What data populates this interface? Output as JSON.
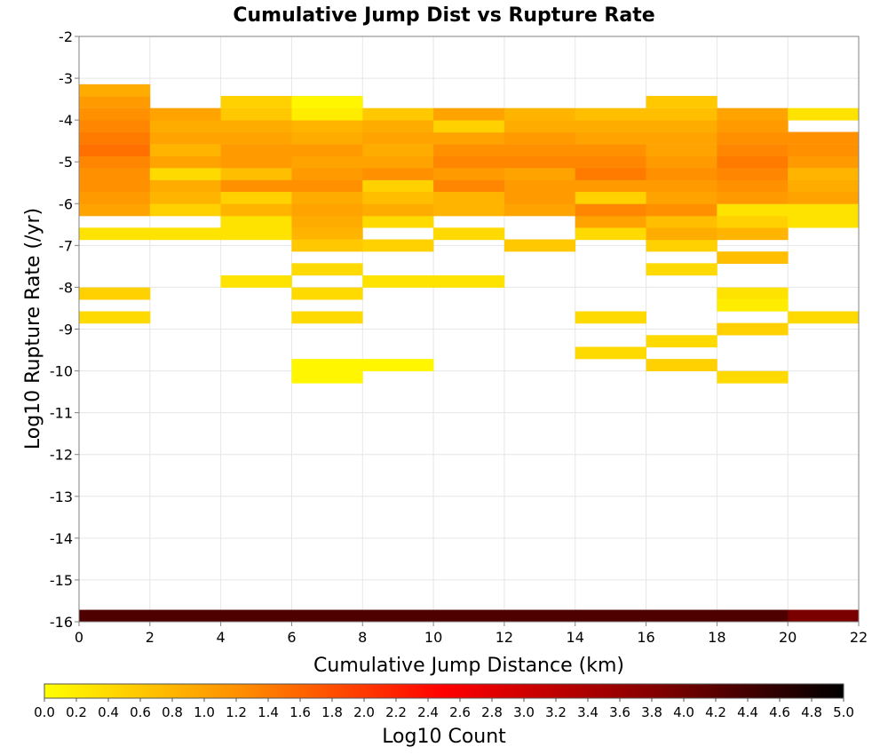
{
  "chart_data": {
    "type": "heatmap",
    "title": "Cumulative Jump Dist vs Rupture Rate",
    "xlabel": "Cumulative Jump Distance (km)",
    "ylabel": "Log10 Rupture Rate (/yr)",
    "xlim": [
      0,
      22
    ],
    "ylim": [
      -16,
      -2
    ],
    "x_ticks": [
      "0",
      "2",
      "4",
      "6",
      "8",
      "10",
      "12",
      "14",
      "16",
      "18",
      "20",
      "22"
    ],
    "y_ticks": [
      "-2",
      "-3",
      "-4",
      "-5",
      "-6",
      "-7",
      "-8",
      "-9",
      "-10",
      "-11",
      "-12",
      "-13",
      "-14",
      "-15",
      "-16"
    ],
    "grid": true,
    "x_bin_width": 2,
    "y_bin_height": 0.2857,
    "y_bin_origin": -16,
    "colorbar": {
      "label": "Log10 Count",
      "range": [
        0,
        5
      ],
      "ticks": [
        "0.0",
        "0.2",
        "0.4",
        "0.6",
        "0.8",
        "1.0",
        "1.2",
        "1.4",
        "1.6",
        "1.8",
        "2.0",
        "2.2",
        "2.4",
        "2.6",
        "2.8",
        "3.0",
        "3.2",
        "3.4",
        "3.6",
        "3.8",
        "4.0",
        "4.2",
        "4.4",
        "4.6",
        "4.8",
        "5.0"
      ],
      "colors": [
        "#ffff00",
        "#ff8c00",
        "#ff0000",
        "#8b0000",
        "#000000"
      ],
      "placement": "bottom"
    },
    "columns": [
      {
        "x_start": 0,
        "cells": [
          [
            -16,
            4.3
          ],
          [
            -6.86,
            0.3
          ],
          [
            -6.29,
            1.0
          ],
          [
            -6.0,
            1.1
          ],
          [
            -5.71,
            1.2
          ],
          [
            -5.43,
            1.2
          ],
          [
            -5.14,
            1.3
          ],
          [
            -4.86,
            1.5
          ],
          [
            -4.57,
            1.4
          ],
          [
            -4.29,
            1.3
          ],
          [
            -4.0,
            1.2
          ],
          [
            -3.71,
            1.1
          ],
          [
            -3.43,
            0.9
          ],
          [
            -8.29,
            0.5
          ],
          [
            -8.86,
            0.4
          ]
        ]
      },
      {
        "x_start": 2,
        "cells": [
          [
            -16,
            4.3
          ],
          [
            -6.86,
            0.3
          ],
          [
            -6.29,
            0.5
          ],
          [
            -6.0,
            0.8
          ],
          [
            -5.71,
            0.9
          ],
          [
            -5.43,
            0.4
          ],
          [
            -5.14,
            1.0
          ],
          [
            -4.86,
            0.8
          ],
          [
            -4.57,
            1.0
          ],
          [
            -4.29,
            0.9
          ],
          [
            -4.0,
            1.0
          ]
        ]
      },
      {
        "x_start": 4,
        "cells": [
          [
            -16,
            4.3
          ],
          [
            -6.86,
            0.3
          ],
          [
            -6.57,
            0.3
          ],
          [
            -6.29,
            0.8
          ],
          [
            -6.0,
            0.5
          ],
          [
            -5.71,
            1.2
          ],
          [
            -5.43,
            0.7
          ],
          [
            -5.14,
            1.1
          ],
          [
            -4.86,
            1.1
          ],
          [
            -4.57,
            1.0
          ],
          [
            -4.29,
            0.9
          ],
          [
            -4.0,
            0.6
          ],
          [
            -3.71,
            0.5
          ],
          [
            -8.0,
            0.3
          ]
        ]
      },
      {
        "x_start": 6,
        "cells": [
          [
            -16,
            4.3
          ],
          [
            -6.86,
            0.8
          ],
          [
            -6.57,
            0.9
          ],
          [
            -6.29,
            1.0
          ],
          [
            -6.0,
            0.9
          ],
          [
            -5.71,
            1.2
          ],
          [
            -5.43,
            1.1
          ],
          [
            -5.14,
            1.0
          ],
          [
            -4.86,
            1.1
          ],
          [
            -4.57,
            0.9
          ],
          [
            -4.29,
            0.8
          ],
          [
            -4.0,
            0.2
          ],
          [
            -3.71,
            0.1
          ],
          [
            -7.14,
            0.6
          ],
          [
            -7.71,
            0.4
          ],
          [
            -8.29,
            0.4
          ],
          [
            -8.86,
            0.4
          ],
          [
            -10.0,
            0.1
          ],
          [
            -10.29,
            0.1
          ]
        ]
      },
      {
        "x_start": 8,
        "cells": [
          [
            -16,
            4.3
          ],
          [
            -6.57,
            0.4
          ],
          [
            -6.29,
            0.9
          ],
          [
            -6.0,
            0.7
          ],
          [
            -5.71,
            0.5
          ],
          [
            -5.43,
            1.2
          ],
          [
            -5.14,
            1.0
          ],
          [
            -4.86,
            0.9
          ],
          [
            -4.57,
            1.0
          ],
          [
            -4.29,
            0.9
          ],
          [
            -4.0,
            0.6
          ],
          [
            -7.14,
            0.5
          ],
          [
            -8.0,
            0.3
          ],
          [
            -10.0,
            0.1
          ]
        ]
      },
      {
        "x_start": 10,
        "cells": [
          [
            -16,
            4.3
          ],
          [
            -6.86,
            0.4
          ],
          [
            -6.29,
            0.8
          ],
          [
            -6.0,
            0.8
          ],
          [
            -5.71,
            1.3
          ],
          [
            -5.43,
            1.1
          ],
          [
            -5.14,
            1.3
          ],
          [
            -4.86,
            1.2
          ],
          [
            -4.57,
            1.0
          ],
          [
            -4.29,
            0.5
          ],
          [
            -4.0,
            1.0
          ],
          [
            -8.0,
            0.3
          ]
        ]
      },
      {
        "x_start": 12,
        "cells": [
          [
            -16,
            4.3
          ],
          [
            -6.29,
            1.0
          ],
          [
            -6.0,
            1.1
          ],
          [
            -5.71,
            1.1
          ],
          [
            -5.43,
            1.0
          ],
          [
            -5.14,
            1.3
          ],
          [
            -4.86,
            1.2
          ],
          [
            -4.57,
            1.1
          ],
          [
            -4.29,
            0.9
          ],
          [
            -4.0,
            0.8
          ],
          [
            -7.14,
            0.6
          ]
        ]
      },
      {
        "x_start": 14,
        "cells": [
          [
            -16,
            4.3
          ],
          [
            -6.86,
            0.4
          ],
          [
            -6.57,
            1.0
          ],
          [
            -6.29,
            1.3
          ],
          [
            -6.0,
            0.5
          ],
          [
            -5.71,
            1.1
          ],
          [
            -5.43,
            1.4
          ],
          [
            -5.14,
            1.3
          ],
          [
            -4.86,
            1.2
          ],
          [
            -4.57,
            1.0
          ],
          [
            -4.29,
            0.9
          ],
          [
            -4.0,
            0.7
          ],
          [
            -8.86,
            0.4
          ],
          [
            -9.71,
            0.4
          ]
        ]
      },
      {
        "x_start": 16,
        "cells": [
          [
            -16,
            4.3
          ],
          [
            -7.14,
            0.5
          ],
          [
            -6.86,
            0.9
          ],
          [
            -6.57,
            0.7
          ],
          [
            -6.29,
            1.2
          ],
          [
            -6.0,
            1.0
          ],
          [
            -5.71,
            1.1
          ],
          [
            -5.43,
            1.2
          ],
          [
            -5.14,
            1.1
          ],
          [
            -4.86,
            1.0
          ],
          [
            -4.57,
            1.0
          ],
          [
            -4.29,
            0.9
          ],
          [
            -4.0,
            0.7
          ],
          [
            -3.71,
            0.6
          ],
          [
            -7.71,
            0.4
          ],
          [
            -9.43,
            0.4
          ],
          [
            -10.0,
            0.5
          ]
        ]
      },
      {
        "x_start": 18,
        "cells": [
          [
            -16,
            4.3
          ],
          [
            -6.86,
            0.8
          ],
          [
            -6.57,
            0.5
          ],
          [
            -6.29,
            0.3
          ],
          [
            -6.0,
            1.1
          ],
          [
            -5.71,
            1.2
          ],
          [
            -5.43,
            1.3
          ],
          [
            -5.14,
            1.4
          ],
          [
            -4.86,
            1.3
          ],
          [
            -4.57,
            1.2
          ],
          [
            -4.29,
            1.1
          ],
          [
            -4.0,
            1.0
          ],
          [
            -7.43,
            0.7
          ],
          [
            -8.29,
            0.3
          ],
          [
            -8.57,
            0.2
          ],
          [
            -9.14,
            0.5
          ],
          [
            -10.29,
            0.4
          ]
        ]
      },
      {
        "x_start": 20,
        "cells": [
          [
            -16,
            3.9
          ],
          [
            -6.57,
            0.3
          ],
          [
            -6.29,
            0.3
          ],
          [
            -6.0,
            1.0
          ],
          [
            -5.71,
            0.9
          ],
          [
            -5.43,
            0.8
          ],
          [
            -5.14,
            1.1
          ],
          [
            -4.86,
            1.2
          ],
          [
            -4.57,
            1.2
          ],
          [
            -4.0,
            0.3
          ],
          [
            -8.86,
            0.4
          ]
        ]
      }
    ]
  }
}
